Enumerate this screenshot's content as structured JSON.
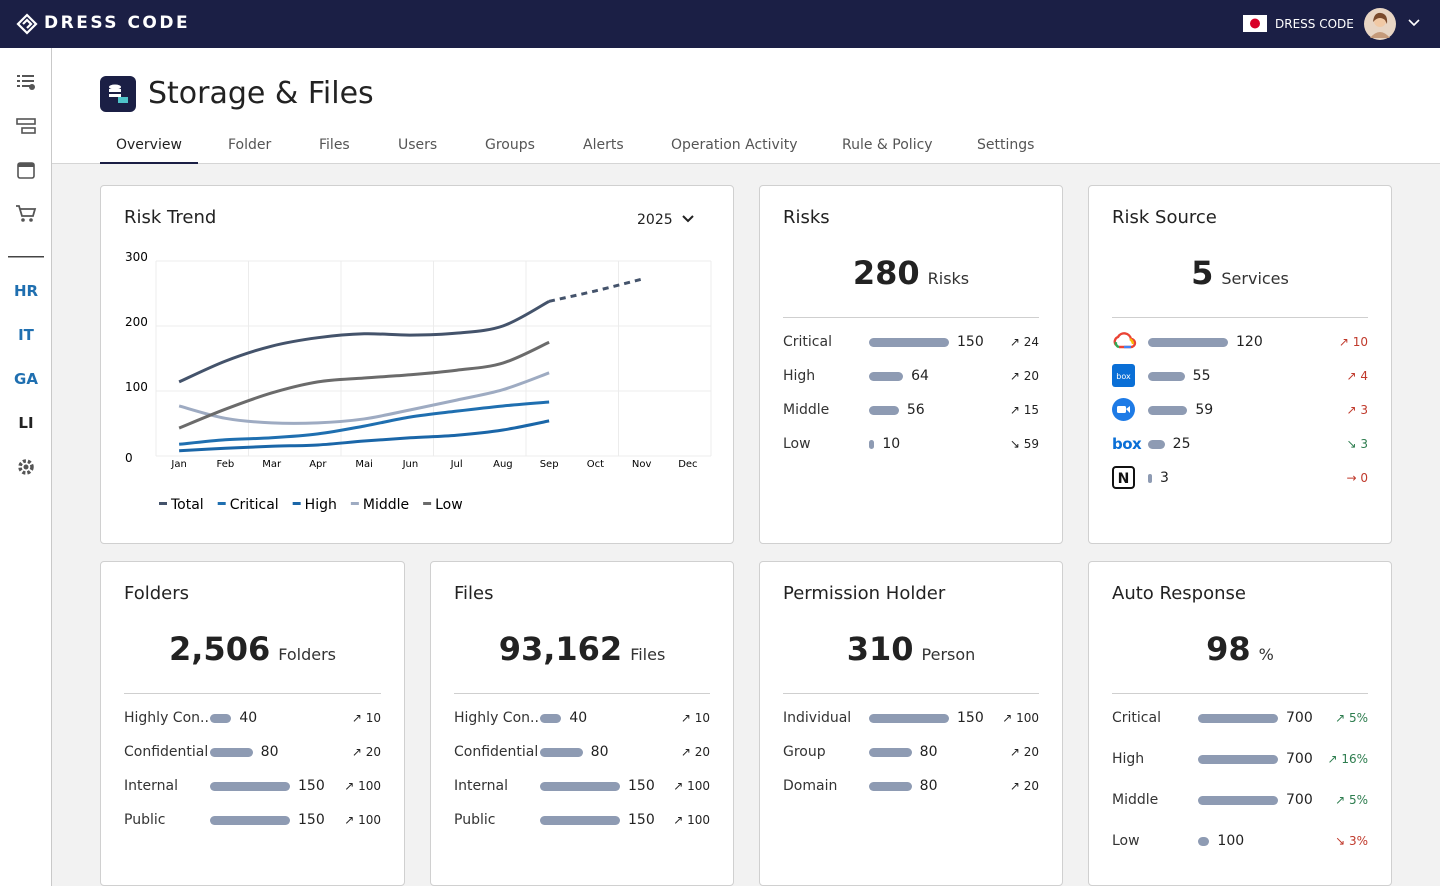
{
  "header": {
    "brand": "DRESS CODE",
    "org": "DRESS CODE"
  },
  "sidebar": {
    "labels": [
      "HR",
      "IT",
      "GA",
      "LI"
    ]
  },
  "page": {
    "title": "Storage & Files",
    "tabs": [
      "Overview",
      "Folder",
      "Files",
      "Users",
      "Groups",
      "Alerts",
      "Operation Activity",
      "Rule & Policy",
      "Settings"
    ],
    "active_tab": "Overview"
  },
  "chart_data": {
    "type": "line",
    "title": "Risk Trend",
    "year": "2025",
    "categories": [
      "Jan",
      "Feb",
      "Mar",
      "Apr",
      "Mai",
      "Jun",
      "Jul",
      "Aug",
      "Sep",
      "Oct",
      "Nov",
      "Dec"
    ],
    "series": [
      {
        "name": "Total",
        "color": "#44536b",
        "values": [
          114,
          146,
          169,
          182,
          188,
          186,
          189,
          200,
          238,
          254,
          272,
          null
        ]
      },
      {
        "name": "Critical",
        "color": "#1f6fb0",
        "values": [
          18,
          25,
          28,
          34,
          46,
          60,
          69,
          77,
          83,
          null,
          null,
          null
        ]
      },
      {
        "name": "High",
        "color": "#1a66a8",
        "values": [
          8,
          12,
          15,
          17,
          23,
          28,
          32,
          40,
          54,
          null,
          null,
          null
        ]
      },
      {
        "name": "Middle",
        "color": "#9eabc2",
        "values": [
          77,
          58,
          51,
          51,
          57,
          71,
          86,
          102,
          128,
          null,
          null,
          null
        ]
      },
      {
        "name": "Low",
        "color": "#6b6b6b",
        "values": [
          43,
          72,
          97,
          114,
          120,
          125,
          132,
          143,
          175,
          null,
          null,
          null
        ]
      }
    ],
    "ylim": [
      0,
      300
    ],
    "yticks": [
      0,
      100,
      200,
      300
    ],
    "dash_from": "Sep",
    "grid": true
  },
  "cards": [
    {
      "title": "Risks",
      "value": "280",
      "unit": "Risks",
      "rows": [
        {
          "label": "Critical",
          "value": 150,
          "trend": "↗ 24"
        },
        {
          "label": "High",
          "value": 64,
          "trend": "↗ 20"
        },
        {
          "label": "Middle",
          "value": 56,
          "trend": "↗ 15"
        },
        {
          "label": "Low",
          "value": 10,
          "trend": "↘ 59"
        }
      ]
    },
    {
      "title": "Risk Source",
      "value": "5",
      "unit": "Services",
      "rows": [
        {
          "value": 120,
          "trend": "↗ 10",
          "trend_color": "#c0392b"
        },
        {
          "value": 55,
          "trend": "↗ 4",
          "trend_color": "#c0392b"
        },
        {
          "value": 59,
          "trend": "↗ 3",
          "trend_color": "#c0392b"
        },
        {
          "value": 25,
          "trend": "↘ 3",
          "trend_color": "#2e7d4f"
        },
        {
          "value": 3,
          "trend": "→ 0",
          "trend_color": "#c0392b"
        }
      ]
    },
    {
      "title": "Folders",
      "value": "2,506",
      "unit": "Folders",
      "rows": [
        {
          "label": "Highly Con...",
          "value": 40,
          "trend": "↗ 10"
        },
        {
          "label": "Confidential",
          "value": 80,
          "trend": "↗ 20"
        },
        {
          "label": "Internal",
          "value": 150,
          "trend": "↗ 100"
        },
        {
          "label": "Public",
          "value": 150,
          "trend": "↗ 100"
        }
      ]
    },
    {
      "title": "Files",
      "value": "93,162",
      "unit": "Files",
      "rows": [
        {
          "label": "Highly Con...",
          "value": 40,
          "trend": "↗ 10"
        },
        {
          "label": "Confidential",
          "value": 80,
          "trend": "↗ 20"
        },
        {
          "label": "Internal",
          "value": 150,
          "trend": "↗ 100"
        },
        {
          "label": "Public",
          "value": 150,
          "trend": "↗ 100"
        }
      ]
    },
    {
      "title": "Permission Holder",
      "value": "310",
      "unit": "Person",
      "rows": [
        {
          "label": "Individual",
          "value": 150,
          "trend": "↗ 100"
        },
        {
          "label": "Group",
          "value": 80,
          "trend": "↗ 20"
        },
        {
          "label": "Domain",
          "value": 80,
          "trend": "↗ 20"
        }
      ]
    },
    {
      "title": "Auto Response",
      "value": "98",
      "unit": "%",
      "rows": [
        {
          "label": "Critical",
          "value": 700,
          "trend": "↗ 5%",
          "trend_color": "#2e7d4f"
        },
        {
          "label": "High",
          "value": 700,
          "trend": "↗ 16%",
          "trend_color": "#2e7d4f"
        },
        {
          "label": "Middle",
          "value": 700,
          "trend": "↗ 5%",
          "trend_color": "#2e7d4f"
        },
        {
          "label": "Low",
          "value": 100,
          "trend": "↘ 3%",
          "trend_color": "#c0392b"
        }
      ]
    }
  ]
}
